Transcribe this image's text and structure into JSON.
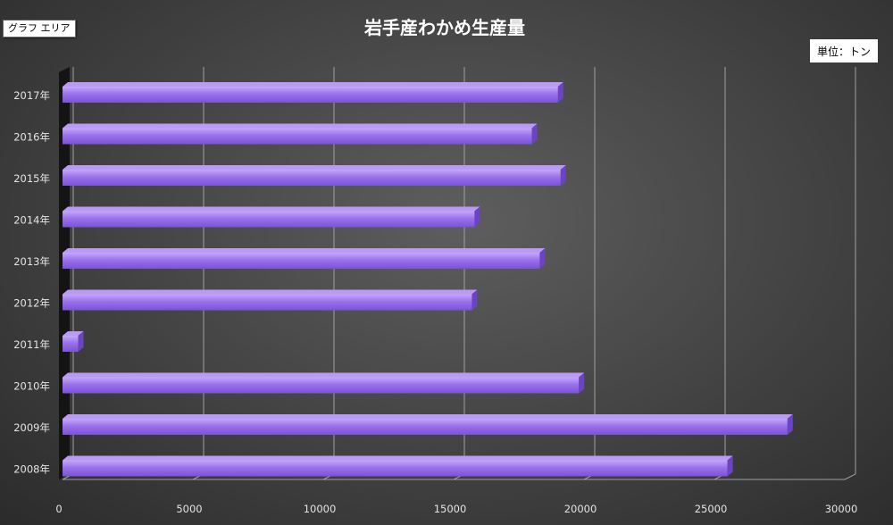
{
  "ui": {
    "chart_area_tag": "グラフ エリア",
    "unit_label": "単位：トン"
  },
  "colors": {
    "bar_front": "#9a72ec",
    "bar_top": "#b99bf5",
    "bar_side": "#6b44c4",
    "grid": "#a0a0a0",
    "axis_wall": "#141414"
  },
  "chart_data": {
    "type": "bar",
    "orientation": "horizontal",
    "title": "岩手産わかめ生産量",
    "xlabel": "",
    "ylabel": "",
    "unit": "単位：トン",
    "categories": [
      "2017年",
      "2016年",
      "2015年",
      "2014年",
      "2013年",
      "2012年",
      "2011年",
      "2010年",
      "2009年",
      "2008年"
    ],
    "values": [
      19000,
      18000,
      19100,
      15800,
      18300,
      15700,
      600,
      19800,
      27800,
      25500
    ],
    "xlim": [
      0,
      30000
    ],
    "xticks": [
      0,
      5000,
      10000,
      15000,
      20000,
      25000,
      30000
    ],
    "grid": true,
    "legend": "none",
    "style": "3d"
  }
}
